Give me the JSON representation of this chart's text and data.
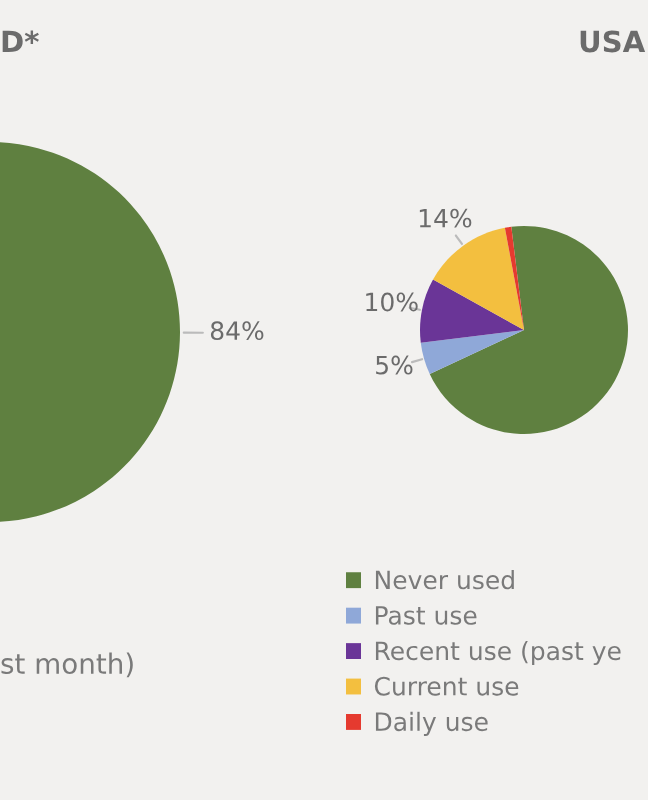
{
  "chart_data": [
    {
      "type": "pie",
      "title": "D*",
      "categories": [
        null
      ],
      "values": [
        84
      ],
      "colors": [
        "#5f8040"
      ],
      "value_labels": [
        "84%"
      ],
      "annotations": [
        "st month)"
      ]
    },
    {
      "type": "pie",
      "title": "USA",
      "categories": [
        "Never used",
        "Past use",
        "Recent use (past ye",
        "Current use",
        "Daily use"
      ],
      "values": [
        70,
        5,
        10,
        14,
        1
      ],
      "colors": [
        "#5f8040",
        "#8fa8d8",
        "#6a3597",
        "#f3bf3f",
        "#e53a2f"
      ],
      "value_labels": [
        null,
        "5%",
        "10%",
        "14%",
        null
      ],
      "legend": "bottom"
    }
  ]
}
